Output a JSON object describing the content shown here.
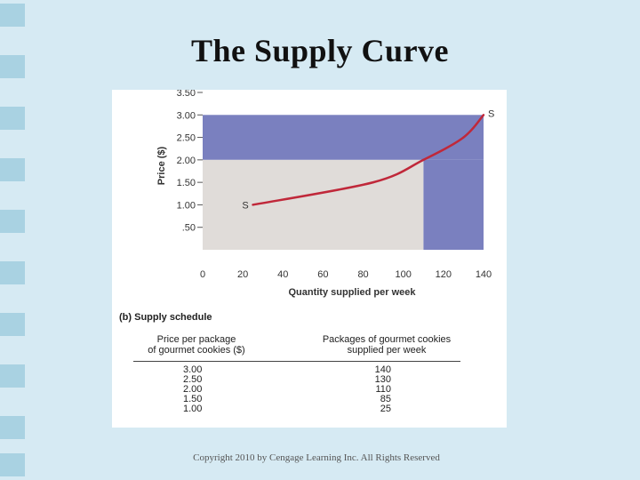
{
  "slide": {
    "title": "The Supply Curve",
    "copyright": "Copyright 2010 by Cengage Learning Inc. All Rights Reserved"
  },
  "chart_data": {
    "type": "line",
    "xlabel": "Quantity supplied per week",
    "ylabel": "Price ($)",
    "xlim": [
      0,
      140
    ],
    "ylim": [
      0,
      3.5
    ],
    "x_ticks": [
      "0",
      "20",
      "40",
      "60",
      "80",
      "100",
      "120",
      "140"
    ],
    "y_ticks": [
      ".50",
      "1.00",
      "1.50",
      "2.00",
      "2.50",
      "3.00",
      "3.50"
    ],
    "series": [
      {
        "name": "S",
        "x": [
          25,
          85,
          110,
          130,
          140
        ],
        "y": [
          1.0,
          1.5,
          2.0,
          2.5,
          3.0
        ]
      }
    ],
    "curve_label_start": "S",
    "curve_label_end": "S",
    "shaded_regions": [
      {
        "x": [
          0,
          140
        ],
        "y": [
          2.0,
          3.0
        ],
        "color": "#7a80bf"
      },
      {
        "x": [
          110,
          140
        ],
        "y": [
          0,
          2.0
        ],
        "color": "#7a80bf"
      },
      {
        "x": [
          0,
          110
        ],
        "y": [
          0,
          2.0
        ],
        "color": "#e0dcd9"
      }
    ],
    "curve_color": "#c0283a",
    "grid": false
  },
  "schedule": {
    "heading": "(b) Supply schedule",
    "price_header_line1": "Price per package",
    "price_header_line2": "of gourmet cookies ($)",
    "qty_header_line1": "Packages of gourmet cookies",
    "qty_header_line2": "supplied per week",
    "rows": [
      {
        "price": "3.00",
        "quantity": "140"
      },
      {
        "price": "2.50",
        "quantity": "130"
      },
      {
        "price": "2.00",
        "quantity": "110"
      },
      {
        "price": "1.50",
        "quantity": "85"
      },
      {
        "price": "1.00",
        "quantity": "25"
      }
    ]
  }
}
